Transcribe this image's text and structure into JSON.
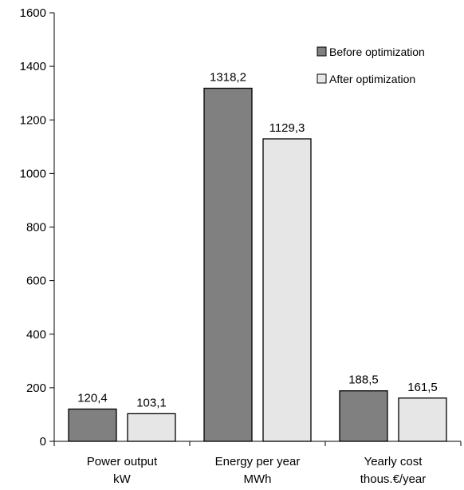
{
  "chart_data": {
    "type": "bar",
    "categories": [
      [
        "Power output",
        "kW"
      ],
      [
        "Energy per year",
        "MWh"
      ],
      [
        "Yearly cost",
        "thous.€/year"
      ]
    ],
    "series": [
      {
        "name": "Before optimization",
        "color": "#808080",
        "values": [
          120.4,
          1318.2,
          188.5
        ],
        "labels": [
          "120,4",
          "1318,2",
          "188,5"
        ]
      },
      {
        "name": "After optimization",
        "color": "#e6e6e6",
        "values": [
          103.1,
          1129.3,
          161.5
        ],
        "labels": [
          "103,1",
          "1129,3",
          "161,5"
        ]
      }
    ],
    "ylim": [
      0,
      1600
    ],
    "yticks": [
      0,
      200,
      400,
      600,
      800,
      1000,
      1200,
      1400,
      1600
    ],
    "title": "",
    "xlabel": "",
    "ylabel": "",
    "grid": false,
    "legend": "top-right"
  }
}
